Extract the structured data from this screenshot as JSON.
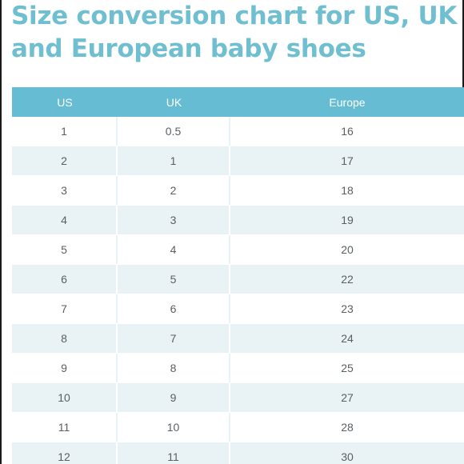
{
  "title": {
    "line1": "Size conversion chart for US, UK",
    "line2": "and European baby shoes"
  },
  "table": {
    "headers": [
      "US",
      "UK",
      "Europe"
    ],
    "rows": [
      [
        "1",
        "0.5",
        "16"
      ],
      [
        "2",
        "1",
        "17"
      ],
      [
        "3",
        "2",
        "18"
      ],
      [
        "4",
        "3",
        "19"
      ],
      [
        "5",
        "4",
        "20"
      ],
      [
        "6",
        "5",
        "22"
      ],
      [
        "7",
        "6",
        "23"
      ],
      [
        "8",
        "7",
        "24"
      ],
      [
        "9",
        "8",
        "25"
      ],
      [
        "10",
        "9",
        "27"
      ],
      [
        "11",
        "10",
        "28"
      ],
      [
        "12",
        "11",
        "30"
      ]
    ]
  },
  "colors": {
    "title": "#6fbfd1",
    "header_bg": "#66bcd2",
    "row_alt_bg": "#e9f2f5",
    "text": "#5a5f63"
  }
}
